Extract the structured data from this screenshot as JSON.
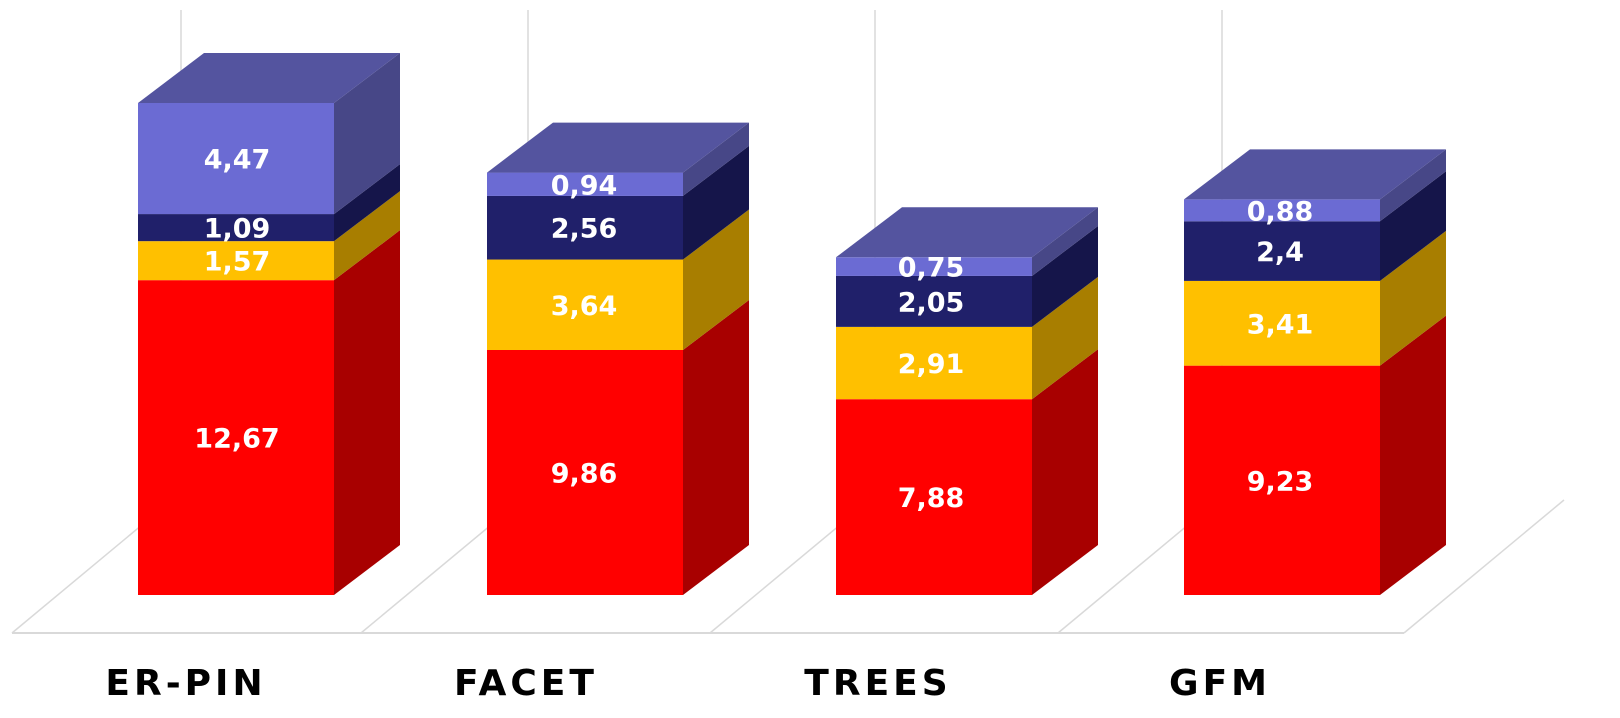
{
  "chart_data": {
    "type": "bar",
    "stacked": true,
    "three_d": true,
    "categories": [
      "ER-PIN",
      "FACET",
      "TREES",
      "GFM"
    ],
    "series": [
      {
        "values": [
          12.67,
          9.86,
          7.88,
          9.23
        ],
        "labels": [
          "12,67",
          "9,86",
          "7,88",
          "9,23"
        ]
      },
      {
        "values": [
          1.57,
          3.64,
          2.91,
          3.41
        ],
        "labels": [
          "1,57",
          "3,64",
          "2,91",
          "3,41"
        ]
      },
      {
        "values": [
          1.09,
          2.56,
          2.05,
          2.4
        ],
        "labels": [
          "1,09",
          "2,56",
          "2,05",
          "2,4"
        ]
      },
      {
        "values": [
          4.47,
          0.94,
          0.75,
          0.88
        ],
        "labels": [
          "4,47",
          "0,94",
          "0,75",
          "0,88"
        ]
      }
    ],
    "colors": {
      "series_front": [
        "#ff0000",
        "#ffc000",
        "#20206a",
        "#6b6bd3"
      ],
      "series_side": [
        "#a80000",
        "#a87e00",
        "#15154a",
        "#474787"
      ],
      "top": "#54549f",
      "grid": "#d9d9d9"
    },
    "title": "",
    "xlabel": "",
    "ylabel": "",
    "ylim": [
      0,
      20
    ],
    "grid": true,
    "legend": "none"
  }
}
